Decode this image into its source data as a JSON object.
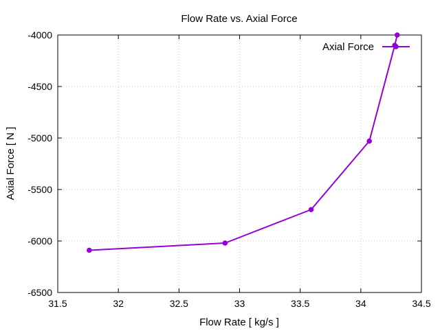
{
  "chart_data": {
    "type": "line",
    "title": "Flow Rate vs. Axial Force",
    "xlabel": "Flow Rate [ kg/s ]",
    "ylabel": "Axial Force [ N ]",
    "xlim": [
      31.5,
      34.5
    ],
    "ylim": [
      -6500,
      -4000
    ],
    "xticks": [
      "31.5",
      "32",
      "32.5",
      "33",
      "33.5",
      "34",
      "34.5"
    ],
    "yticks": [
      "-6500",
      "-6000",
      "-5500",
      "-5000",
      "-4500",
      "-4000"
    ],
    "grid": true,
    "legend_position": "top-right",
    "series": [
      {
        "name": "Axial Force",
        "color": "#9400d3",
        "x": [
          31.76,
          32.88,
          33.59,
          34.07,
          34.28,
          34.3
        ],
        "y": [
          -6090,
          -6020,
          -5695,
          -5030,
          -4100,
          -4000
        ]
      }
    ]
  }
}
